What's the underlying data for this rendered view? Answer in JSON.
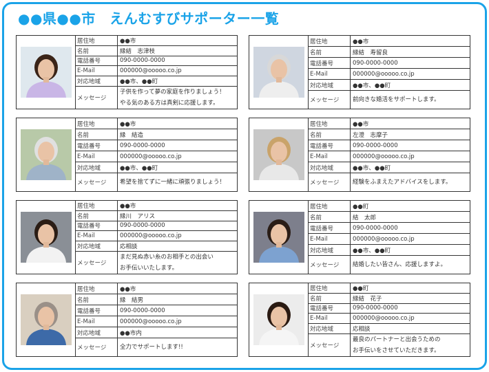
{
  "title": "●●県●●市　えんむすびサポーター一覧",
  "accent_color": "#1aa3e8",
  "labels": {
    "residence": "居住地",
    "name": "名前",
    "phone": "電話番号",
    "email": "E-Mail",
    "area": "対応地域",
    "message": "メッセージ"
  },
  "supporters": [
    {
      "residence": "●●市",
      "name": "縁結　志津枝",
      "phone": "090-0000-0000",
      "email": "000000@ooooo.co.jp",
      "area": "●●市、●●町",
      "message": [
        "子供を作って夢の家庭を作りましょう！",
        "やる気のある方は真剣に応援します。"
      ],
      "photo": "woman-photo",
      "bg": "#dfe8ee",
      "hair": "#3a2418",
      "shirt": "#c9b6e6"
    },
    {
      "residence": "●●市",
      "name": "縁結　寿留良",
      "phone": "090-0000-0000",
      "email": "000000@ooooo.co.jp",
      "area": "●●市、●●町",
      "message": [
        "前向きな婚活をサポートします。"
      ],
      "photo": "senior-woman-headset-photo",
      "bg": "#cfd6e0",
      "hair": "#d8d8d8",
      "shirt": "#eeeeee"
    },
    {
      "residence": "●●市",
      "name": "縁　結造",
      "phone": "090-0000-0000",
      "email": "000000@ooooo.co.jp",
      "area": "●●市、●●町",
      "message": [
        "希望を捨てずに一緒に頑張りましょう！"
      ],
      "photo": "senior-man-photo",
      "bg": "#b8c9a8",
      "hair": "#e0e0e0",
      "shirt": "#9fb3c8"
    },
    {
      "residence": "●●市",
      "name": "左澄　志摩子",
      "phone": "090-0000-0000",
      "email": "000000@ooooo.co.jp",
      "area": "●●市、●●町",
      "message": [
        "経験をふまえたアドバイスをします。"
      ],
      "photo": "woman-glasses-photo",
      "bg": "#c8c8c8",
      "hair": "#c9a36a",
      "shirt": "#e8e8e8"
    },
    {
      "residence": "●●市",
      "name": "縁川　アリス",
      "phone": "090-0000-0000",
      "email": "000000@ooooo.co.jp",
      "area": "応相談",
      "message": [
        "まだ見ぬ赤い糸のお相手との出会い",
        "お手伝いいたします。"
      ],
      "photo": "young-woman-photo",
      "bg": "#8a8f96",
      "hair": "#2b1d15",
      "shirt": "#f2f2f2"
    },
    {
      "residence": "●●町",
      "name": "結　太郎",
      "phone": "090-0000-0000",
      "email": "000000@ooooo.co.jp",
      "area": "●●市、●●町",
      "message": [
        "結婚したい皆さん、応援しますよ。"
      ],
      "photo": "man-photo",
      "bg": "#7d7f8c",
      "hair": "#2a1d16",
      "shirt": "#7da2d0"
    },
    {
      "residence": "●●市",
      "name": "縁　結男",
      "phone": "090-0000-0000",
      "email": "000000@ooooo.co.jp",
      "area": "●●市内",
      "message": [
        "全力でサポートします!!"
      ],
      "photo": "man-glasses-photo",
      "bg": "#d9cfc0",
      "hair": "#9a9088",
      "shirt": "#3d6aa8"
    },
    {
      "residence": "●●町",
      "name": "縁結　花子",
      "phone": "090-0000-0000",
      "email": "000000@ooooo.co.jp",
      "area": "応相談",
      "message": [
        "最良のパートナーと出会うための",
        "お手伝いをさせていただきます。"
      ],
      "photo": "young-woman-ponytail-photo",
      "bg": "#ececec",
      "hair": "#2a1a12",
      "shirt": "#f5f5f5"
    }
  ]
}
